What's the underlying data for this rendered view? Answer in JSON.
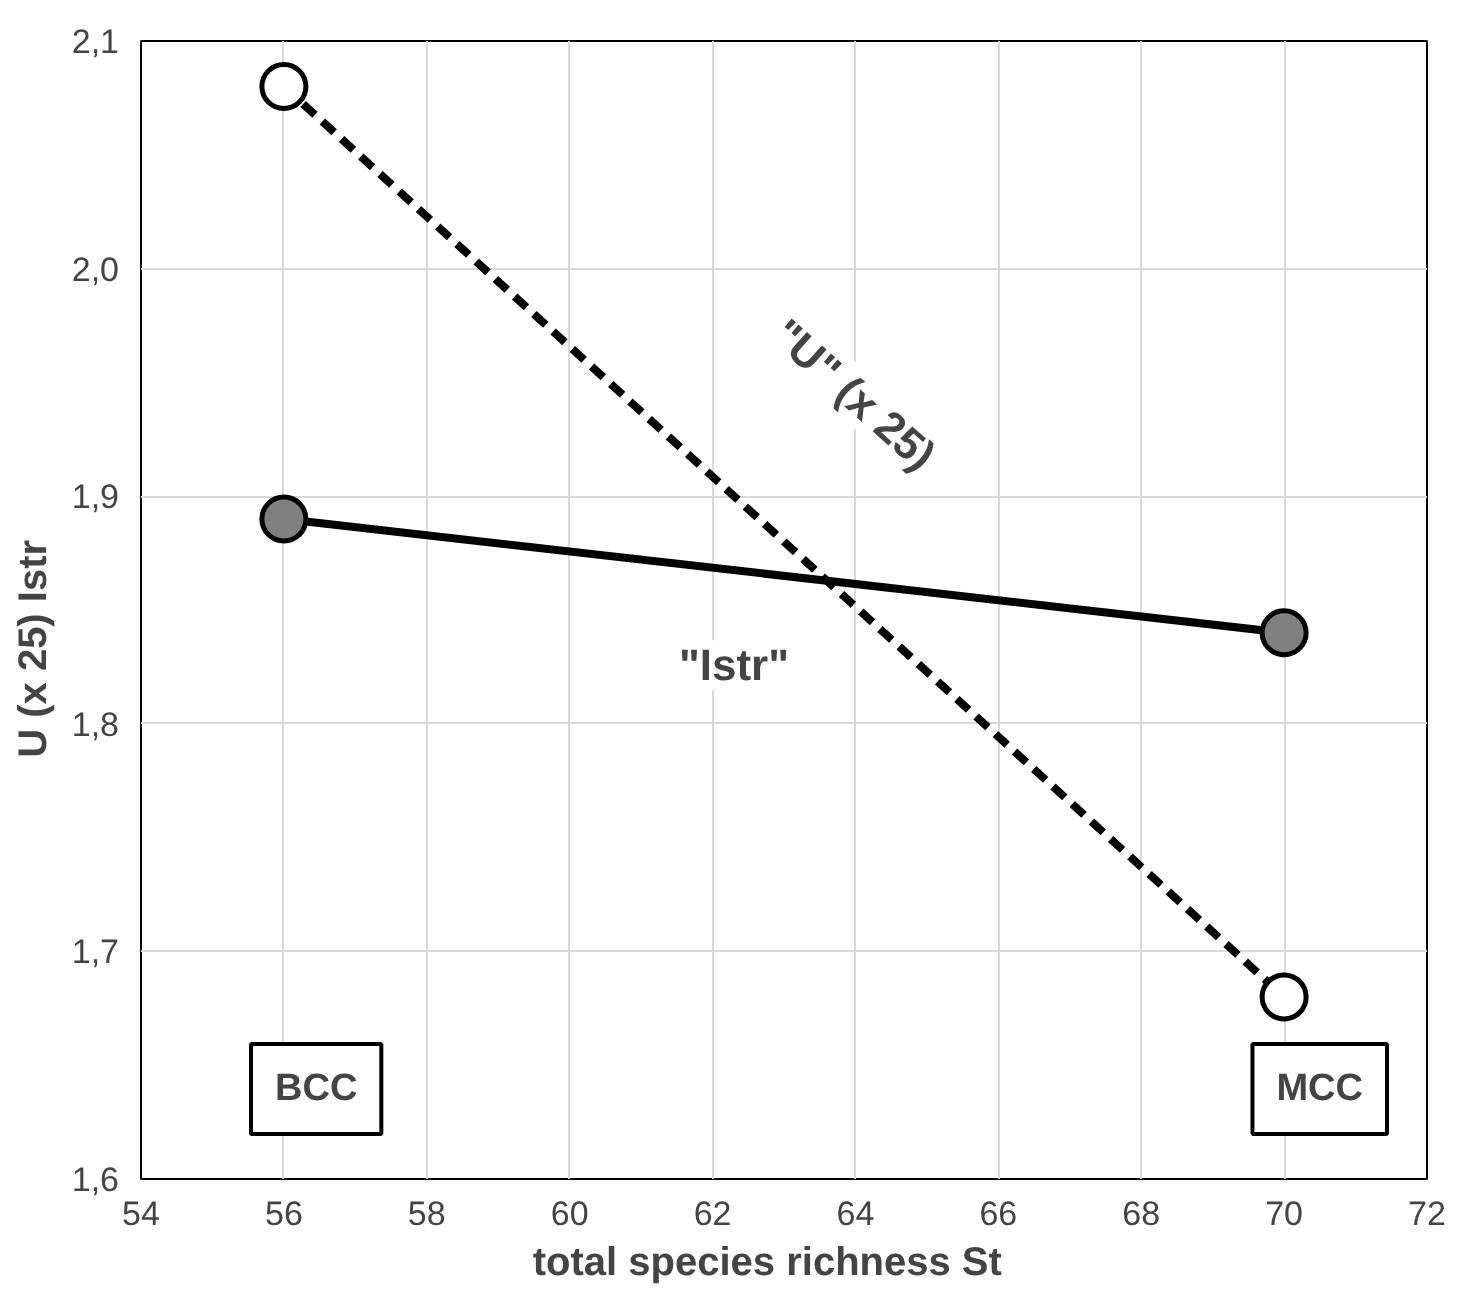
{
  "chart_data": {
    "type": "line",
    "xlabel": "total  species  richness  St",
    "ylabel": "U (x 25)        Istr",
    "x": [
      56,
      70
    ],
    "series": [
      {
        "name": "\"U\" (x 25)",
        "color": "#000000",
        "values": [
          2.08,
          1.68
        ],
        "line_style": "dashed",
        "marker": "circle"
      },
      {
        "name": "\"Istr\"",
        "color": "#000000",
        "values": [
          1.89,
          1.84
        ],
        "line_style": "solid",
        "marker": "circle"
      }
    ],
    "annotations": [
      "BCC",
      "MCC"
    ],
    "xlim": [
      54,
      72
    ],
    "xticks": [
      54,
      56,
      58,
      60,
      62,
      64,
      66,
      68,
      70,
      72
    ],
    "ylim": [
      1.6,
      2.1
    ],
    "yticks": [
      {
        "value": 1.6,
        "label": "1,6"
      },
      {
        "value": 1.7,
        "label": "1,7"
      },
      {
        "value": 1.8,
        "label": "1,8"
      },
      {
        "value": 1.9,
        "label": "1,9"
      },
      {
        "value": 2.0,
        "label": "2,0"
      },
      {
        "value": 2.1,
        "label": "2,1"
      }
    ],
    "grid": true
  }
}
